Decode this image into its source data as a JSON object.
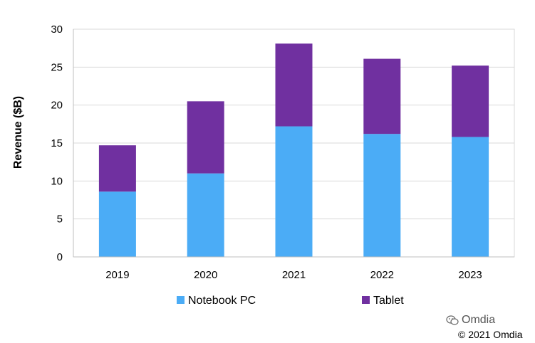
{
  "chart_data": {
    "type": "bar",
    "stacked": true,
    "categories": [
      "2019",
      "2020",
      "2021",
      "2022",
      "2023"
    ],
    "series": [
      {
        "name": "Notebook PC",
        "color": "#4BACF6",
        "values": [
          8.6,
          11.0,
          17.2,
          16.2,
          15.8
        ]
      },
      {
        "name": "Tablet",
        "color": "#7030A0",
        "values": [
          6.1,
          9.5,
          10.9,
          9.9,
          9.4
        ]
      }
    ],
    "ylabel": "Revenue ($B)",
    "ylim": [
      0,
      30
    ],
    "yticks": [
      0,
      5,
      10,
      15,
      20,
      25,
      30
    ],
    "grid": true,
    "legend": "bottom"
  },
  "watermark": {
    "icon": "wechat-icon",
    "text": "Omdia"
  },
  "copyright": "© 2021 Omdia"
}
